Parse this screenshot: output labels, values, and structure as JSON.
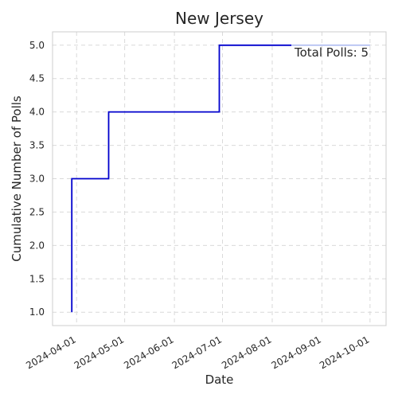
{
  "chart_data": {
    "type": "line",
    "title": "New Jersey",
    "xlabel": "Date",
    "ylabel": "Cumulative Number of Polls",
    "annotation": "Total Polls: 5",
    "x_ticks": [
      "2024-04-01",
      "2024-05-01",
      "2024-06-01",
      "2024-07-01",
      "2024-08-01",
      "2024-09-01",
      "2024-10-01"
    ],
    "y_ticks": [
      "1.0",
      "1.5",
      "2.0",
      "2.5",
      "3.0",
      "3.5",
      "4.0",
      "4.5",
      "5.0"
    ],
    "xlim": [
      "2024-03-17",
      "2024-10-11"
    ],
    "ylim": [
      0.8,
      5.2
    ],
    "grid": true,
    "series": [
      {
        "color": "#0000cd",
        "step": true,
        "points": [
          {
            "x": "2024-03-29",
            "y": 1
          },
          {
            "x": "2024-03-29",
            "y": 3
          },
          {
            "x": "2024-04-21",
            "y": 3
          },
          {
            "x": "2024-04-21",
            "y": 4
          },
          {
            "x": "2024-06-29",
            "y": 4
          },
          {
            "x": "2024-06-29",
            "y": 5
          },
          {
            "x": "2024-08-13",
            "y": 5
          }
        ]
      },
      {
        "color": "#a9b7f0",
        "points": [
          {
            "x": "2024-08-13",
            "y": 5
          },
          {
            "x": "2024-10-01",
            "y": 5
          }
        ]
      }
    ]
  }
}
